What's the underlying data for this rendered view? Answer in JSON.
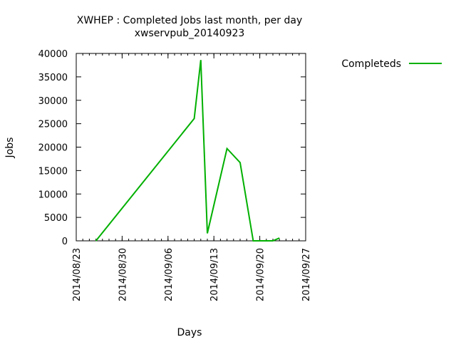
{
  "chart_data": {
    "type": "line",
    "title": "XWHEP : Completed Jobs last month, per day",
    "subtitle": "xwservpub_20140923",
    "xlabel": "Days",
    "ylabel": "Jobs",
    "x_axis_type": "date",
    "xlim": [
      "2014-08-23",
      "2014-09-27"
    ],
    "ylim": [
      0,
      40000
    ],
    "y_ticks": [
      0,
      5000,
      10000,
      15000,
      20000,
      25000,
      30000,
      35000,
      40000
    ],
    "x_ticks": [
      "2014-08-23",
      "2014-08-30",
      "2014-09-06",
      "2014-09-13",
      "2014-09-20",
      "2014-09-27"
    ],
    "x_tick_labels": [
      "2014/08/23",
      "2014/08/30",
      "2014/09/06",
      "2014/09/13",
      "2014/09/20",
      "2014/09/27"
    ],
    "grid": false,
    "legend_position": "top-right, outside plot",
    "series": [
      {
        "name": "Completeds",
        "color": "#00b000",
        "points": [
          [
            "2014-08-26",
            0
          ],
          [
            "2014-09-10",
            26100
          ],
          [
            "2014-09-11",
            38600
          ],
          [
            "2014-09-12",
            1600
          ],
          [
            "2014-09-15",
            19700
          ],
          [
            "2014-09-17",
            16700
          ],
          [
            "2014-09-19",
            0
          ],
          [
            "2014-09-22",
            0
          ],
          [
            "2014-09-23",
            600
          ]
        ]
      }
    ]
  }
}
